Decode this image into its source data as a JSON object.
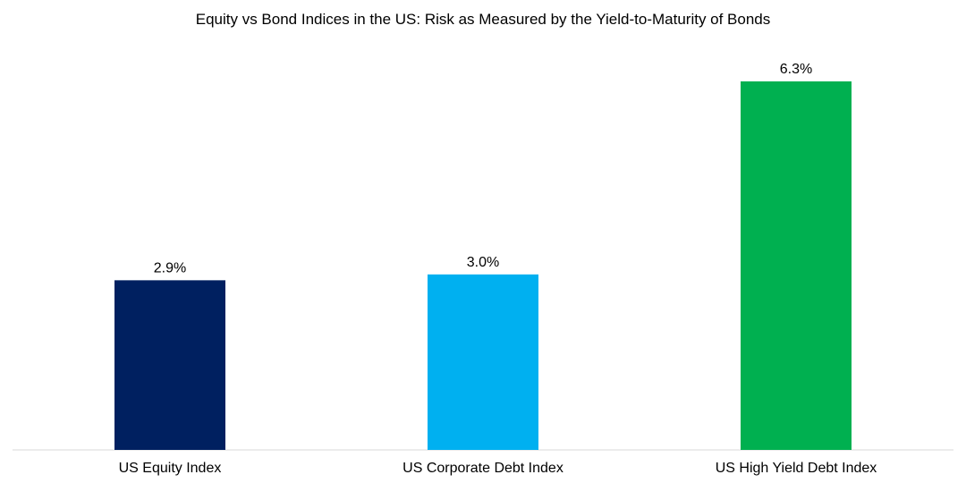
{
  "chart_data": {
    "type": "bar",
    "title": "Equity vs Bond Indices in the US: Risk as Measured by the Yield-to-Maturity of Bonds",
    "categories": [
      "US Equity Index",
      "US Corporate Debt Index",
      "US High Yield Debt Index"
    ],
    "values": [
      2.9,
      3.0,
      6.3
    ],
    "data_labels": [
      "2.9%",
      "3.0%",
      "6.3%"
    ],
    "colors": [
      "#002060",
      "#00B0F0",
      "#00B050"
    ],
    "ylim": [
      0,
      6.6
    ],
    "grid": false,
    "xlabel": "",
    "ylabel": ""
  }
}
